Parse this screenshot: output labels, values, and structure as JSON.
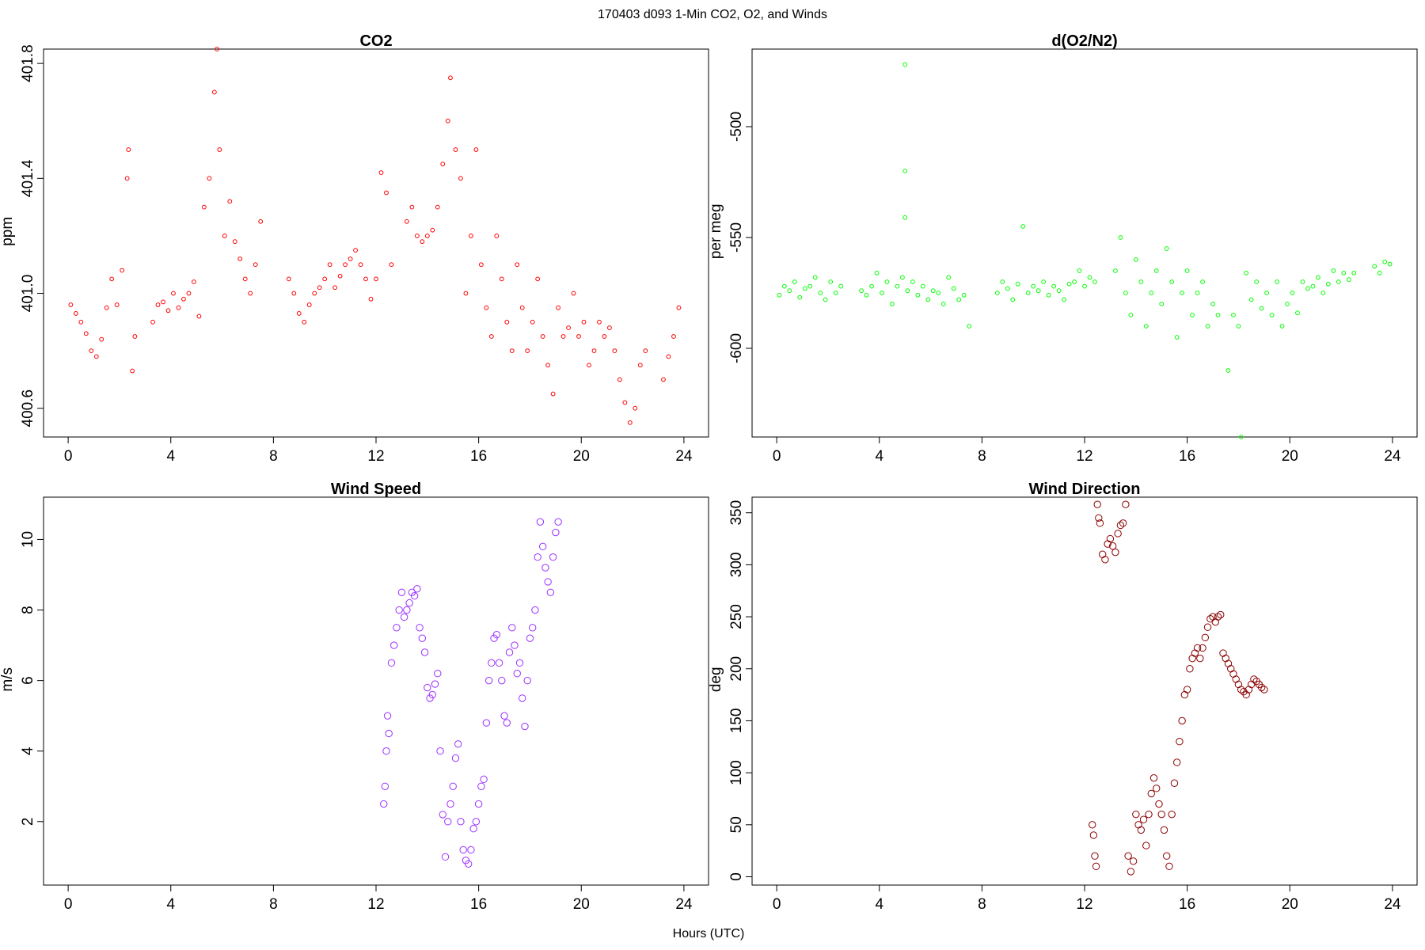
{
  "figure": {
    "title": "170403   d093   1-Min CO2, O2, and Winds",
    "xlabel": "Hours (UTC)"
  },
  "chart_data": [
    {
      "type": "scatter",
      "title": "CO2",
      "ylabel": "ppm",
      "xlim": [
        -0.96,
        24.96
      ],
      "ylim": [
        400.5,
        401.85
      ],
      "xticks": [
        0,
        4,
        8,
        12,
        16,
        20,
        24
      ],
      "yticks": [
        400.6,
        401.0,
        401.4,
        401.8
      ],
      "color": "#ff0000",
      "series": [
        {
          "x": [
            0.1,
            0.3,
            0.5,
            0.7,
            0.9,
            1.1,
            1.3,
            1.5,
            1.7,
            1.9,
            2.1,
            2.3,
            2.35,
            2.5,
            2.6,
            3.3,
            3.5,
            3.7,
            3.9,
            4.1,
            4.3,
            4.5,
            4.7,
            4.9,
            5.1,
            5.3,
            5.5,
            5.7,
            5.8,
            5.9,
            6.1,
            6.3,
            6.5,
            6.7,
            6.9,
            7.1,
            7.3,
            7.5,
            8.6,
            8.8,
            9.0,
            9.2,
            9.4,
            9.6,
            9.8,
            10.0,
            10.2,
            10.4,
            10.6,
            10.8,
            11.0,
            11.2,
            11.4,
            11.6,
            11.8,
            12.0,
            12.2,
            12.4,
            12.6,
            13.2,
            13.4,
            13.6,
            13.8,
            14.0,
            14.2,
            14.4,
            14.6,
            14.8,
            14.9,
            15.1,
            15.3,
            15.5,
            15.7,
            15.9,
            16.1,
            16.3,
            16.5,
            16.7,
            16.9,
            17.1,
            17.3,
            17.5,
            17.7,
            17.9,
            18.1,
            18.3,
            18.5,
            18.7,
            18.9,
            19.1,
            19.3,
            19.5,
            19.7,
            19.9,
            20.1,
            20.3,
            20.5,
            20.7,
            20.9,
            21.1,
            21.3,
            21.5,
            21.7,
            21.9,
            22.1,
            22.3,
            22.5,
            23.2,
            23.4,
            23.6,
            23.8
          ],
          "y": [
            400.96,
            400.93,
            400.9,
            400.86,
            400.8,
            400.78,
            400.84,
            400.95,
            401.05,
            400.96,
            401.08,
            401.4,
            401.5,
            400.73,
            400.85,
            400.9,
            400.96,
            400.97,
            400.94,
            401.0,
            400.95,
            400.98,
            401.0,
            401.04,
            400.92,
            401.3,
            401.4,
            401.7,
            401.85,
            401.5,
            401.2,
            401.32,
            401.18,
            401.12,
            401.05,
            401.0,
            401.1,
            401.25,
            401.05,
            401.0,
            400.93,
            400.9,
            400.96,
            401.0,
            401.02,
            401.05,
            401.1,
            401.02,
            401.06,
            401.1,
            401.12,
            401.15,
            401.1,
            401.05,
            400.98,
            401.05,
            401.42,
            401.35,
            401.1,
            401.25,
            401.3,
            401.2,
            401.18,
            401.2,
            401.22,
            401.3,
            401.45,
            401.6,
            401.75,
            401.5,
            401.4,
            401.0,
            401.2,
            401.5,
            401.1,
            400.95,
            400.85,
            401.2,
            401.05,
            400.9,
            400.8,
            401.1,
            400.95,
            400.8,
            400.9,
            401.05,
            400.85,
            400.75,
            400.65,
            400.95,
            400.85,
            400.88,
            401.0,
            400.85,
            400.9,
            400.75,
            400.8,
            400.9,
            400.85,
            400.88,
            400.8,
            400.7,
            400.62,
            400.55,
            400.6,
            400.75,
            400.8,
            400.7,
            400.78,
            400.85,
            400.95
          ]
        }
      ]
    },
    {
      "type": "scatter",
      "title": "d(O2/N2)",
      "ylabel": "per meg",
      "xlim": [
        -0.96,
        24.96
      ],
      "ylim": [
        -640,
        -465
      ],
      "xticks": [
        0,
        4,
        8,
        12,
        16,
        20,
        24
      ],
      "yticks": [
        -500,
        -550,
        -600
      ],
      "color": "#00ff00",
      "series": [
        {
          "x": [
            0.1,
            0.3,
            0.5,
            0.7,
            0.9,
            1.1,
            1.3,
            1.5,
            1.7,
            1.9,
            2.1,
            2.3,
            2.5,
            3.3,
            3.5,
            3.7,
            3.9,
            4.1,
            4.3,
            4.5,
            4.7,
            4.9,
            5.0,
            5.0,
            5.0,
            5.1,
            5.3,
            5.5,
            5.7,
            5.9,
            6.1,
            6.3,
            6.5,
            6.7,
            6.9,
            7.1,
            7.3,
            7.5,
            8.6,
            8.8,
            9.0,
            9.2,
            9.4,
            9.6,
            9.8,
            10.0,
            10.2,
            10.4,
            10.6,
            10.8,
            11.0,
            11.2,
            11.4,
            11.6,
            11.8,
            12.0,
            12.2,
            12.4,
            13.2,
            13.4,
            13.6,
            13.8,
            14.0,
            14.2,
            14.4,
            14.6,
            14.8,
            15.0,
            15.2,
            15.4,
            15.6,
            15.8,
            16.0,
            16.2,
            16.4,
            16.6,
            16.8,
            17.0,
            17.2,
            17.6,
            17.8,
            18.0,
            18.1,
            18.3,
            18.5,
            18.7,
            18.9,
            19.1,
            19.3,
            19.5,
            19.7,
            19.9,
            20.1,
            20.3,
            20.5,
            20.7,
            20.9,
            21.1,
            21.3,
            21.5,
            21.7,
            21.9,
            22.1,
            22.3,
            22.5,
            23.3,
            23.5,
            23.7,
            23.9
          ],
          "y": [
            -576,
            -572,
            -574,
            -570,
            -577,
            -573,
            -572,
            -568,
            -575,
            -578,
            -570,
            -575,
            -572,
            -574,
            -576,
            -572,
            -566,
            -575,
            -570,
            -580,
            -572,
            -568,
            -472,
            -520,
            -541,
            -574,
            -570,
            -576,
            -572,
            -578,
            -574,
            -575,
            -580,
            -568,
            -573,
            -578,
            -576,
            -590,
            -575,
            -570,
            -573,
            -578,
            -571,
            -545,
            -575,
            -572,
            -574,
            -570,
            -576,
            -572,
            -574,
            -578,
            -571,
            -570,
            -565,
            -572,
            -568,
            -570,
            -565,
            -550,
            -575,
            -585,
            -560,
            -570,
            -590,
            -575,
            -565,
            -580,
            -555,
            -570,
            -595,
            -575,
            -565,
            -585,
            -575,
            -570,
            -590,
            -580,
            -585,
            -610,
            -585,
            -590,
            -640,
            -566,
            -578,
            -570,
            -582,
            -575,
            -585,
            -570,
            -590,
            -580,
            -575,
            -584,
            -570,
            -573,
            -572,
            -568,
            -575,
            -571,
            -565,
            -570,
            -566,
            -569,
            -566,
            -563,
            -566,
            -561,
            -562
          ]
        }
      ]
    },
    {
      "type": "scatter",
      "title": "Wind Speed",
      "ylabel": "m/s",
      "xlim": [
        -0.96,
        24.96
      ],
      "ylim": [
        0.2,
        11.2
      ],
      "xticks": [
        0,
        4,
        8,
        12,
        16,
        20,
        24
      ],
      "yticks": [
        2,
        4,
        6,
        8,
        10
      ],
      "color": "#9b30ff",
      "series": [
        {
          "x": [
            12.3,
            12.35,
            12.4,
            12.45,
            12.5,
            12.6,
            12.7,
            12.8,
            12.9,
            13.0,
            13.1,
            13.2,
            13.3,
            13.4,
            13.5,
            13.6,
            13.7,
            13.8,
            13.9,
            14.0,
            14.1,
            14.2,
            14.3,
            14.4,
            14.5,
            14.6,
            14.7,
            14.8,
            14.9,
            15.0,
            15.1,
            15.2,
            15.3,
            15.4,
            15.5,
            15.6,
            15.7,
            15.8,
            15.9,
            16.0,
            16.1,
            16.2,
            16.3,
            16.4,
            16.5,
            16.6,
            16.7,
            16.8,
            16.9,
            17.0,
            17.1,
            17.2,
            17.3,
            17.4,
            17.5,
            17.6,
            17.7,
            17.8,
            17.9,
            18.0,
            18.1,
            18.2,
            18.3,
            18.4,
            18.5,
            18.6,
            18.7,
            18.8,
            18.9,
            19.0,
            19.1
          ],
          "y": [
            2.5,
            3.0,
            4.0,
            5.0,
            4.5,
            6.5,
            7.0,
            7.5,
            8.0,
            8.5,
            7.8,
            8.0,
            8.2,
            8.5,
            8.4,
            8.6,
            7.5,
            7.2,
            6.8,
            5.8,
            5.5,
            5.6,
            5.9,
            6.2,
            4.0,
            2.2,
            1.0,
            2.0,
            2.5,
            3.0,
            3.8,
            4.2,
            2.0,
            1.2,
            0.9,
            0.8,
            1.2,
            1.8,
            2.0,
            2.5,
            3.0,
            3.2,
            4.8,
            6.0,
            6.5,
            7.2,
            7.3,
            6.5,
            6.0,
            5.0,
            4.8,
            6.8,
            7.5,
            7.0,
            6.2,
            6.5,
            5.5,
            4.7,
            6.0,
            7.2,
            7.5,
            8.0,
            9.5,
            10.5,
            9.8,
            9.2,
            8.8,
            8.5,
            9.5,
            10.2,
            10.5
          ]
        }
      ]
    },
    {
      "type": "scatter",
      "title": "Wind Direction",
      "ylabel": "deg",
      "xlim": [
        -0.96,
        24.96
      ],
      "ylim": [
        -8,
        365
      ],
      "xticks": [
        0,
        4,
        8,
        12,
        16,
        20,
        24
      ],
      "yticks": [
        0,
        50,
        100,
        150,
        200,
        250,
        300,
        350
      ],
      "color": "#8b0000",
      "series": [
        {
          "x": [
            12.3,
            12.35,
            12.4,
            12.45,
            12.5,
            12.55,
            12.6,
            12.7,
            12.8,
            12.9,
            13.0,
            13.1,
            13.2,
            13.3,
            13.4,
            13.5,
            13.6,
            13.7,
            13.8,
            13.9,
            14.0,
            14.1,
            14.2,
            14.3,
            14.4,
            14.5,
            14.6,
            14.7,
            14.8,
            14.9,
            15.0,
            15.1,
            15.2,
            15.3,
            15.4,
            15.5,
            15.6,
            15.7,
            15.8,
            15.9,
            16.0,
            16.1,
            16.2,
            16.3,
            16.4,
            16.5,
            16.6,
            16.7,
            16.8,
            16.9,
            17.0,
            17.1,
            17.2,
            17.3,
            17.4,
            17.5,
            17.6,
            17.7,
            17.8,
            17.9,
            18.0,
            18.1,
            18.2,
            18.3,
            18.4,
            18.5,
            18.6,
            18.7,
            18.8,
            18.9,
            19.0
          ],
          "y": [
            50,
            40,
            20,
            10,
            358,
            345,
            340,
            310,
            305,
            320,
            325,
            318,
            312,
            330,
            338,
            340,
            358,
            20,
            5,
            15,
            60,
            50,
            45,
            55,
            30,
            60,
            80,
            95,
            85,
            70,
            60,
            45,
            20,
            10,
            60,
            90,
            110,
            130,
            150,
            175,
            180,
            200,
            210,
            215,
            220,
            210,
            220,
            230,
            240,
            248,
            250,
            245,
            250,
            252,
            215,
            210,
            205,
            200,
            195,
            190,
            185,
            180,
            178,
            175,
            180,
            185,
            190,
            188,
            185,
            182,
            180
          ]
        }
      ]
    }
  ]
}
